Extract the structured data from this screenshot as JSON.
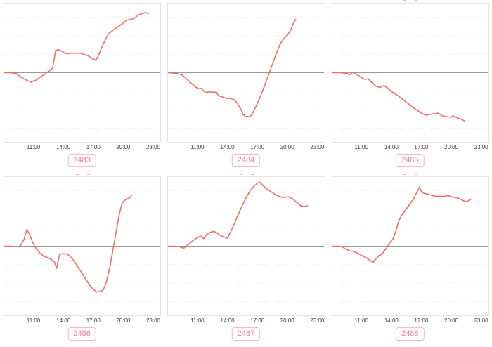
{
  "colors": {
    "line": "#f56c6c",
    "zero_line": "#9a9a9a",
    "grid": "#ededed",
    "plot_border": "#e4e4e4",
    "tick_text": "#3c3c3c",
    "tag_text": "#ee7fa6",
    "tag_border": "#f6b6cb",
    "background": "#ffffff"
  },
  "x_ticks": [
    "11:00",
    "14:00",
    "17:00",
    "20:00",
    "23:00"
  ],
  "chart_data": [
    {
      "id": "2483",
      "label": "2483",
      "type": "line",
      "xlabel": "",
      "ylabel": "",
      "legend": null,
      "grid": "horizontal-dotted",
      "x_unit": "time_of_day_hours",
      "x_range": [
        8,
        23.8
      ],
      "y_unit": "normalized_deviation_from_zero_line",
      "y_range": [
        -1,
        1
      ],
      "zero_baseline": true,
      "points": [
        [
          8.0,
          0
        ],
        [
          8.6,
          0
        ],
        [
          9.2,
          -0.01
        ],
        [
          9.6,
          -0.06
        ],
        [
          10.1,
          -0.1
        ],
        [
          10.7,
          -0.14
        ],
        [
          11.2,
          -0.11
        ],
        [
          11.7,
          -0.06
        ],
        [
          12.2,
          -0.01
        ],
        [
          12.6,
          0.03
        ],
        [
          12.9,
          0.07
        ],
        [
          13.2,
          0.33
        ],
        [
          13.5,
          0.34
        ],
        [
          13.9,
          0.31
        ],
        [
          14.3,
          0.28
        ],
        [
          14.7,
          0.29
        ],
        [
          15.2,
          0.29
        ],
        [
          15.7,
          0.29
        ],
        [
          16.1,
          0.27
        ],
        [
          16.5,
          0.25
        ],
        [
          17.0,
          0.2
        ],
        [
          17.3,
          0.19
        ],
        [
          17.6,
          0.28
        ],
        [
          18.0,
          0.42
        ],
        [
          18.5,
          0.57
        ],
        [
          19.0,
          0.63
        ],
        [
          19.5,
          0.68
        ],
        [
          20.0,
          0.73
        ],
        [
          20.4,
          0.78
        ],
        [
          20.8,
          0.79
        ],
        [
          21.2,
          0.81
        ],
        [
          21.6,
          0.86
        ],
        [
          22.0,
          0.88
        ],
        [
          22.3,
          0.89
        ],
        [
          22.6,
          0.88
        ]
      ]
    },
    {
      "id": "2484",
      "label": "2484",
      "type": "line",
      "xlabel": "",
      "ylabel": "",
      "legend": null,
      "grid": "horizontal-dotted",
      "x_unit": "time_of_day_hours",
      "x_range": [
        8,
        23.8
      ],
      "y_unit": "normalized_deviation_from_zero_line",
      "y_range": [
        -1,
        1
      ],
      "zero_baseline": true,
      "points": [
        [
          8.0,
          0
        ],
        [
          8.8,
          -0.01
        ],
        [
          9.4,
          -0.03
        ],
        [
          9.8,
          -0.08
        ],
        [
          10.3,
          -0.15
        ],
        [
          10.8,
          -0.21
        ],
        [
          11.1,
          -0.24
        ],
        [
          11.4,
          -0.23
        ],
        [
          11.6,
          -0.27
        ],
        [
          11.9,
          -0.3
        ],
        [
          12.1,
          -0.28
        ],
        [
          12.5,
          -0.29
        ],
        [
          12.9,
          -0.29
        ],
        [
          13.1,
          -0.34
        ],
        [
          13.5,
          -0.36
        ],
        [
          13.9,
          -0.38
        ],
        [
          14.3,
          -0.38
        ],
        [
          14.7,
          -0.4
        ],
        [
          15.0,
          -0.45
        ],
        [
          15.4,
          -0.55
        ],
        [
          15.6,
          -0.62
        ],
        [
          15.9,
          -0.65
        ],
        [
          16.3,
          -0.65
        ],
        [
          16.6,
          -0.59
        ],
        [
          17.0,
          -0.47
        ],
        [
          17.4,
          -0.33
        ],
        [
          17.8,
          -0.18
        ],
        [
          18.2,
          -0.02
        ],
        [
          18.6,
          0.14
        ],
        [
          19.0,
          0.3
        ],
        [
          19.4,
          0.44
        ],
        [
          19.8,
          0.52
        ],
        [
          20.1,
          0.56
        ],
        [
          20.4,
          0.63
        ],
        [
          20.7,
          0.74
        ],
        [
          20.9,
          0.79
        ]
      ]
    },
    {
      "id": "2485",
      "label": "2485",
      "type": "line",
      "xlabel": "",
      "ylabel": "",
      "legend": null,
      "grid": "horizontal-dotted",
      "x_unit": "time_of_day_hours",
      "x_range": [
        8,
        23.8
      ],
      "y_unit": "normalized_deviation_from_zero_line",
      "y_range": [
        -1,
        1
      ],
      "zero_baseline": true,
      "points": [
        [
          8.0,
          0
        ],
        [
          8.8,
          0
        ],
        [
          9.4,
          -0.01
        ],
        [
          9.8,
          -0.03
        ],
        [
          10.1,
          0.01
        ],
        [
          10.4,
          -0.02
        ],
        [
          10.7,
          -0.05
        ],
        [
          11.0,
          -0.08
        ],
        [
          11.3,
          -0.1
        ],
        [
          11.6,
          -0.09
        ],
        [
          12.0,
          -0.15
        ],
        [
          12.4,
          -0.2
        ],
        [
          12.8,
          -0.22
        ],
        [
          13.2,
          -0.19
        ],
        [
          13.6,
          -0.23
        ],
        [
          14.0,
          -0.28
        ],
        [
          14.5,
          -0.33
        ],
        [
          15.0,
          -0.38
        ],
        [
          15.5,
          -0.44
        ],
        [
          16.0,
          -0.5
        ],
        [
          16.5,
          -0.55
        ],
        [
          17.0,
          -0.6
        ],
        [
          17.4,
          -0.63
        ],
        [
          17.8,
          -0.62
        ],
        [
          18.2,
          -0.61
        ],
        [
          18.7,
          -0.6
        ],
        [
          19.1,
          -0.64
        ],
        [
          19.5,
          -0.65
        ],
        [
          19.9,
          -0.66
        ],
        [
          20.2,
          -0.64
        ],
        [
          20.6,
          -0.67
        ],
        [
          21.0,
          -0.69
        ],
        [
          21.4,
          -0.72
        ]
      ]
    },
    {
      "id": "2486",
      "label": "2486",
      "type": "line",
      "xlabel": "",
      "ylabel": "",
      "legend": null,
      "grid": "horizontal-dotted",
      "x_unit": "time_of_day_hours",
      "x_range": [
        8,
        23.8
      ],
      "y_unit": "normalized_deviation_from_zero_line",
      "y_range": [
        -1,
        1
      ],
      "zero_baseline": true,
      "points": [
        [
          8.0,
          0
        ],
        [
          8.8,
          0
        ],
        [
          9.4,
          -0.01
        ],
        [
          9.7,
          0.02
        ],
        [
          10.0,
          0.1
        ],
        [
          10.3,
          0.25
        ],
        [
          10.6,
          0.16
        ],
        [
          10.9,
          0.05
        ],
        [
          11.2,
          -0.03
        ],
        [
          11.6,
          -0.1
        ],
        [
          12.0,
          -0.15
        ],
        [
          12.4,
          -0.17
        ],
        [
          12.8,
          -0.2
        ],
        [
          13.1,
          -0.24
        ],
        [
          13.3,
          -0.33
        ],
        [
          13.6,
          -0.12
        ],
        [
          14.0,
          -0.11
        ],
        [
          14.4,
          -0.12
        ],
        [
          14.8,
          -0.17
        ],
        [
          15.2,
          -0.25
        ],
        [
          15.6,
          -0.34
        ],
        [
          16.0,
          -0.43
        ],
        [
          16.5,
          -0.55
        ],
        [
          17.0,
          -0.64
        ],
        [
          17.4,
          -0.68
        ],
        [
          17.7,
          -0.67
        ],
        [
          18.0,
          -0.65
        ],
        [
          18.3,
          -0.55
        ],
        [
          18.7,
          -0.3
        ],
        [
          19.0,
          -0.05
        ],
        [
          19.3,
          0.2
        ],
        [
          19.6,
          0.45
        ],
        [
          19.9,
          0.63
        ],
        [
          20.1,
          0.67
        ],
        [
          20.4,
          0.7
        ],
        [
          20.7,
          0.72
        ],
        [
          20.9,
          0.76
        ]
      ]
    },
    {
      "id": "2487",
      "label": "2487",
      "type": "line",
      "xlabel": "",
      "ylabel": "",
      "legend": null,
      "grid": "horizontal-dotted",
      "x_unit": "time_of_day_hours",
      "x_range": [
        8,
        23.8
      ],
      "y_unit": "normalized_deviation_from_zero_line",
      "y_range": [
        -1,
        1
      ],
      "zero_baseline": true,
      "points": [
        [
          8.0,
          0
        ],
        [
          8.7,
          0
        ],
        [
          9.2,
          -0.01
        ],
        [
          9.6,
          -0.03
        ],
        [
          10.0,
          0.02
        ],
        [
          10.4,
          0.07
        ],
        [
          10.8,
          0.11
        ],
        [
          11.1,
          0.14
        ],
        [
          11.4,
          0.15
        ],
        [
          11.6,
          0.11
        ],
        [
          11.9,
          0.17
        ],
        [
          12.2,
          0.2
        ],
        [
          12.5,
          0.22
        ],
        [
          12.8,
          0.21
        ],
        [
          13.2,
          0.17
        ],
        [
          13.6,
          0.14
        ],
        [
          14.0,
          0.12
        ],
        [
          14.3,
          0.2
        ],
        [
          14.7,
          0.33
        ],
        [
          15.1,
          0.47
        ],
        [
          15.5,
          0.6
        ],
        [
          15.9,
          0.72
        ],
        [
          16.3,
          0.82
        ],
        [
          16.7,
          0.89
        ],
        [
          17.0,
          0.93
        ],
        [
          17.3,
          0.95
        ],
        [
          17.6,
          0.9
        ],
        [
          18.0,
          0.85
        ],
        [
          18.4,
          0.81
        ],
        [
          18.8,
          0.77
        ],
        [
          19.2,
          0.74
        ],
        [
          19.6,
          0.72
        ],
        [
          20.0,
          0.73
        ],
        [
          20.3,
          0.73
        ],
        [
          20.7,
          0.69
        ],
        [
          21.0,
          0.65
        ],
        [
          21.3,
          0.61
        ],
        [
          21.6,
          0.59
        ],
        [
          21.9,
          0.59
        ],
        [
          22.1,
          0.6
        ]
      ]
    },
    {
      "id": "2488",
      "label": "2488",
      "type": "line",
      "xlabel": "",
      "ylabel": "",
      "legend": null,
      "grid": "horizontal-dotted",
      "x_unit": "time_of_day_hours",
      "x_range": [
        8,
        23.8
      ],
      "y_unit": "normalized_deviation_from_zero_line",
      "y_range": [
        -1,
        1
      ],
      "zero_baseline": true,
      "points": [
        [
          8.0,
          0
        ],
        [
          8.7,
          0
        ],
        [
          9.0,
          -0.01
        ],
        [
          9.4,
          -0.05
        ],
        [
          9.8,
          -0.07
        ],
        [
          10.2,
          -0.08
        ],
        [
          10.6,
          -0.11
        ],
        [
          11.0,
          -0.14
        ],
        [
          11.4,
          -0.17
        ],
        [
          11.8,
          -0.21
        ],
        [
          12.1,
          -0.24
        ],
        [
          12.4,
          -0.19
        ],
        [
          12.7,
          -0.14
        ],
        [
          13.0,
          -0.12
        ],
        [
          13.3,
          -0.06
        ],
        [
          13.5,
          -0.02
        ],
        [
          13.8,
          0.05
        ],
        [
          14.1,
          0.1
        ],
        [
          14.4,
          0.22
        ],
        [
          14.7,
          0.37
        ],
        [
          15.0,
          0.46
        ],
        [
          15.4,
          0.54
        ],
        [
          15.8,
          0.62
        ],
        [
          16.2,
          0.7
        ],
        [
          16.5,
          0.79
        ],
        [
          16.8,
          0.88
        ],
        [
          17.0,
          0.81
        ],
        [
          17.3,
          0.78
        ],
        [
          17.7,
          0.77
        ],
        [
          18.1,
          0.75
        ],
        [
          18.5,
          0.74
        ],
        [
          18.9,
          0.74
        ],
        [
          19.3,
          0.74
        ],
        [
          19.7,
          0.75
        ],
        [
          20.1,
          0.73
        ],
        [
          20.5,
          0.72
        ],
        [
          20.9,
          0.7
        ],
        [
          21.3,
          0.67
        ],
        [
          21.6,
          0.66
        ],
        [
          21.9,
          0.69
        ],
        [
          22.1,
          0.7
        ]
      ]
    }
  ]
}
